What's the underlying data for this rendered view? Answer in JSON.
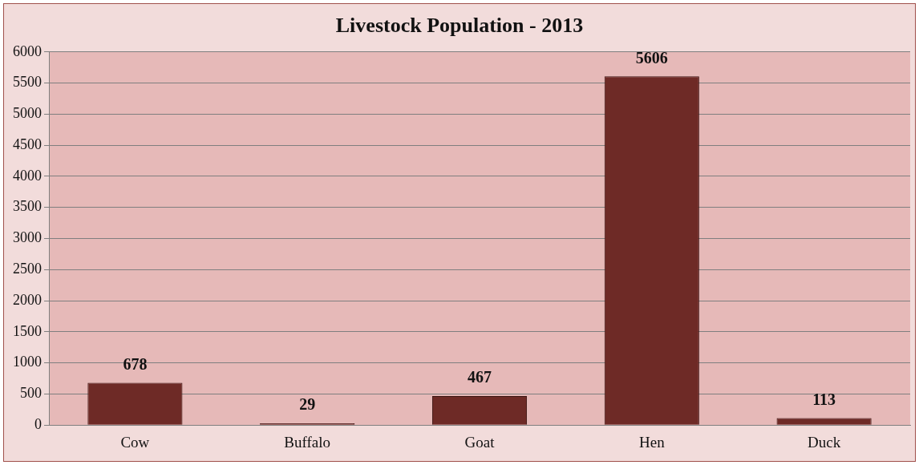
{
  "chart_data": {
    "type": "bar",
    "title": "Livestock Population - 2013",
    "categories": [
      "Cow",
      "Buffalo",
      "Goat",
      "Hen",
      "Duck"
    ],
    "values": [
      678,
      29,
      467,
      5606,
      113
    ],
    "color": "#6e2a26",
    "ylim": [
      0,
      6000
    ],
    "yticks": [
      0,
      500,
      1000,
      1500,
      2000,
      2500,
      3000,
      3500,
      4000,
      4500,
      5000,
      5500,
      6000
    ],
    "grid": "y",
    "legend": false,
    "data_labels": true
  }
}
